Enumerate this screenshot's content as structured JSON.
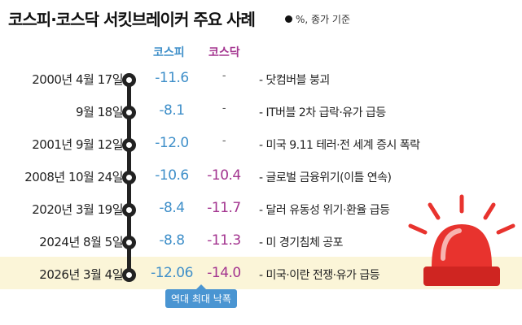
{
  "title": "코스피·코스닥 서킷브레이커 주요 사례",
  "note": "%, 종가 기준",
  "headers": {
    "kospi": "코스피",
    "kosdaq": "코스닥"
  },
  "rows": [
    {
      "date": "2000년 4월 17일",
      "kospi": "-11.6",
      "kosdaq": "-",
      "desc": "- 닷컴버블 붕괴"
    },
    {
      "date": "9월 18일",
      "kospi": "-8.1",
      "kosdaq": "-",
      "desc": "- IT버블 2차 급락·유가 급등"
    },
    {
      "date": "2001년 9월 12일",
      "kospi": "-12.0",
      "kosdaq": "-",
      "desc": "- 미국 9.11 테러·전 세계 증시 폭락"
    },
    {
      "date": "2008년 10월 24일",
      "kospi": "-10.6",
      "kosdaq": "-10.4",
      "desc": "- 글로벌 금융위기(이틀 연속)"
    },
    {
      "date": "2020년 3월 19일",
      "kospi": "-8.4",
      "kosdaq": "-11.7",
      "desc": "- 달러 유동성 위기·환율 급등"
    },
    {
      "date": "2024년 8월 5일",
      "kospi": "-8.8",
      "kosdaq": "-11.3",
      "desc": "- 미 경기침체 공포"
    },
    {
      "date": "2026년 3월 4일",
      "kospi": "-12.06",
      "kosdaq": "-14.0",
      "desc": "- 미국·이란 전쟁·유가 급등"
    }
  ],
  "badge": "역대 최대 낙폭",
  "colors": {
    "kospi": "#3f8fc9",
    "kosdaq": "#a3348f",
    "highlight": "#fbf5d8",
    "siren": "#e8332e"
  },
  "icons": {
    "legend": "black-dot-icon",
    "siren": "red-siren-icon"
  }
}
